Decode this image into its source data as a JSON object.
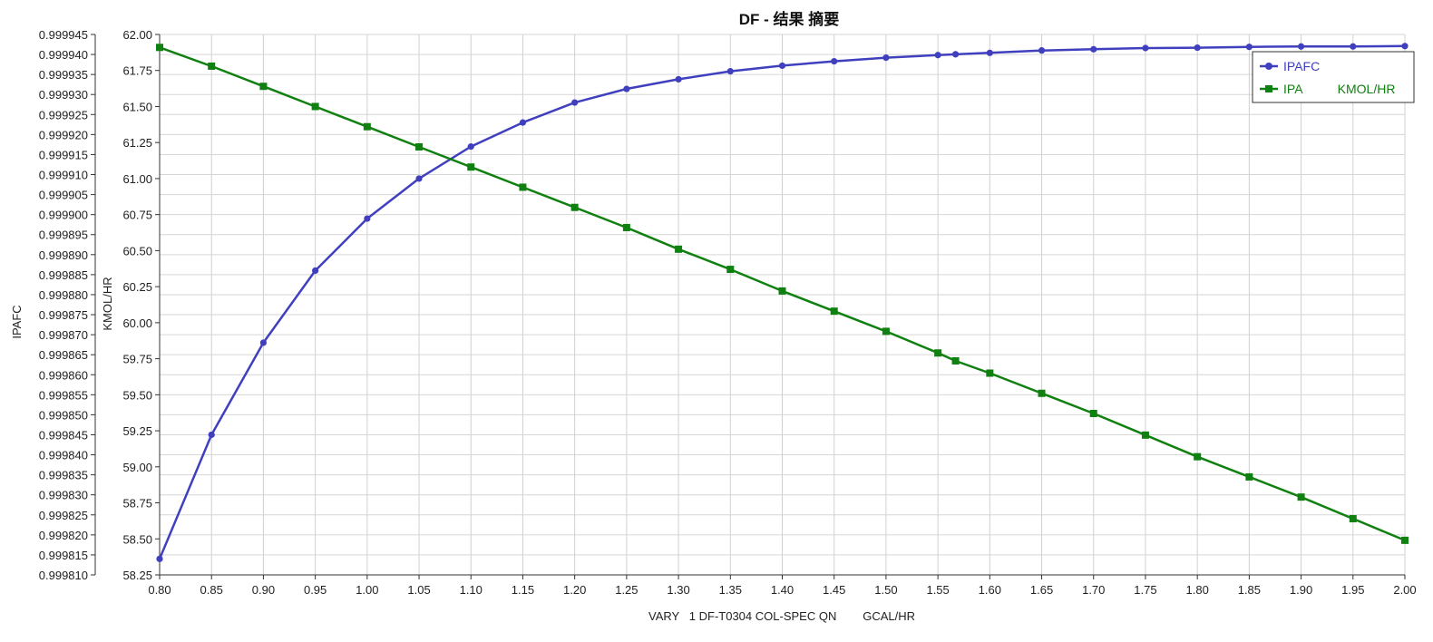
{
  "chart_data": {
    "type": "line",
    "title": "DF - 结果 摘要",
    "xlabel": "VARY   1 DF-T0304 COL-SPEC QN        GCAL/HR",
    "y1label": "IPAFC",
    "y2label": "KMOL/HR",
    "xlim": [
      0.8,
      2.0
    ],
    "y1lim": [
      0.99981,
      0.999945
    ],
    "y2lim": [
      58.25,
      62.0
    ],
    "x_ticks": [
      "0.80",
      "0.85",
      "0.90",
      "0.95",
      "1.00",
      "1.05",
      "1.10",
      "1.15",
      "1.20",
      "1.25",
      "1.30",
      "1.35",
      "1.40",
      "1.45",
      "1.50",
      "1.55",
      "1.60",
      "1.65",
      "1.70",
      "1.75",
      "1.80",
      "1.85",
      "1.90",
      "1.95",
      "2.00"
    ],
    "y1_ticks": [
      "0.999810",
      "0.999815",
      "0.999820",
      "0.999825",
      "0.999830",
      "0.999835",
      "0.999840",
      "0.999845",
      "0.999850",
      "0.999855",
      "0.999860",
      "0.999865",
      "0.999870",
      "0.999875",
      "0.999880",
      "0.999885",
      "0.999890",
      "0.999895",
      "0.999900",
      "0.999905",
      "0.999910",
      "0.999915",
      "0.999920",
      "0.999925",
      "0.999930",
      "0.999935",
      "0.999940",
      "0.999945"
    ],
    "y2_ticks": [
      "58.25",
      "58.50",
      "58.75",
      "59.00",
      "59.25",
      "59.50",
      "59.75",
      "60.00",
      "60.25",
      "60.50",
      "60.75",
      "61.00",
      "61.25",
      "61.50",
      "61.75",
      "62.00"
    ],
    "grid": true,
    "legend_position": "top-right",
    "series": [
      {
        "name": "IPAFC",
        "axis": "left",
        "color": "#4040bf",
        "marker": "circle",
        "x": [
          0.8,
          0.85,
          0.9,
          0.95,
          1.0,
          1.05,
          1.1,
          1.15,
          1.2,
          1.25,
          1.3,
          1.35,
          1.4,
          1.45,
          1.5,
          1.55,
          1.567,
          1.6,
          1.65,
          1.7,
          1.75,
          1.8,
          1.85,
          1.9,
          1.95,
          2.0
        ],
        "y": [
          0.999814,
          0.999845,
          0.999868,
          0.999886,
          0.999899,
          0.999909,
          0.999917,
          0.999923,
          0.999928,
          0.9999314,
          0.9999338,
          0.9999358,
          0.9999372,
          0.9999383,
          0.9999392,
          0.99993985,
          0.99994005,
          0.9999404,
          0.999941,
          0.9999413,
          0.9999416,
          0.9999417,
          0.9999419,
          0.999942,
          0.999942,
          0.9999421
        ]
      },
      {
        "name": "IPA          KMOL/HR",
        "axis": "right",
        "color": "#108010",
        "marker": "square",
        "x": [
          0.8,
          0.85,
          0.9,
          0.95,
          1.0,
          1.05,
          1.1,
          1.15,
          1.2,
          1.25,
          1.3,
          1.35,
          1.4,
          1.45,
          1.5,
          1.55,
          1.567,
          1.6,
          1.65,
          1.7,
          1.75,
          1.8,
          1.85,
          1.9,
          1.95,
          2.0
        ],
        "y": [
          61.91,
          61.78,
          61.64,
          61.5,
          61.36,
          61.22,
          61.08,
          60.94,
          60.8,
          60.66,
          60.51,
          60.37,
          60.22,
          60.08,
          59.94,
          59.79,
          59.735,
          59.65,
          59.51,
          59.37,
          59.22,
          59.07,
          58.93,
          58.79,
          58.64,
          58.49
        ]
      }
    ]
  }
}
